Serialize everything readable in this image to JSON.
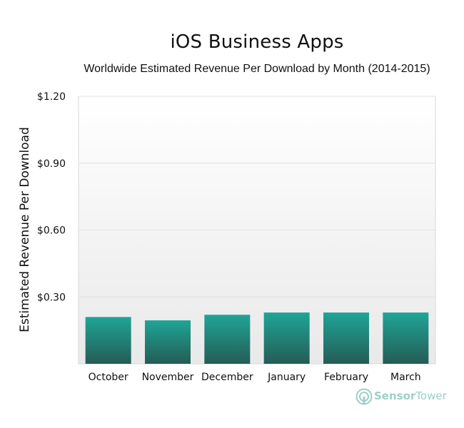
{
  "chart_data": {
    "type": "bar",
    "title": "iOS Business Apps",
    "subtitle": "Worldwide Estimated Revenue Per Download by Month (2014-2015)",
    "xlabel": "",
    "ylabel": "Estimated Revenue Per Download",
    "categories": [
      "October",
      "November",
      "December",
      "January",
      "February",
      "March"
    ],
    "values": [
      0.21,
      0.195,
      0.22,
      0.23,
      0.23,
      0.23
    ],
    "ylim": [
      0,
      1.2
    ],
    "yticks": [
      0.3,
      0.6,
      0.9,
      1.2
    ],
    "ytick_labels": [
      "$0.30",
      "$0.60",
      "$0.90",
      "$1.20"
    ],
    "grid": true,
    "colors": {
      "bar_top": "#1fa597",
      "bar_bottom": "#245c55",
      "plot_bg_top": "#ffffff",
      "plot_bg_bottom": "#e9e9e9",
      "grid": "#e2e2e2",
      "frame": "#d9d9d9"
    }
  },
  "watermark": {
    "brand_part1": "Sensor",
    "brand_part2": "Tower",
    "icon": "sensortower-logo-icon",
    "color": "#9bd0c6"
  }
}
